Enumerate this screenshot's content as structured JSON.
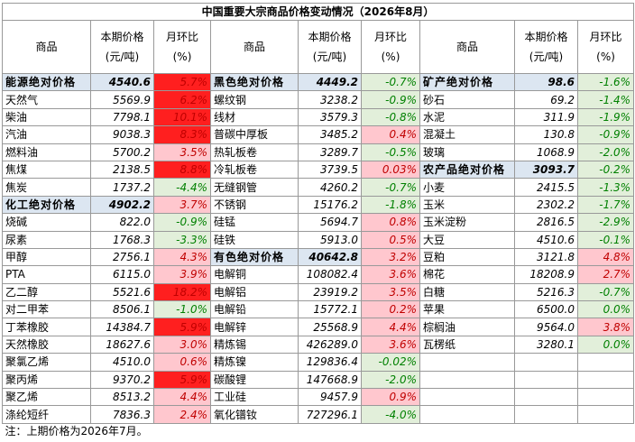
{
  "title": "中国重要大宗商品价格变动情况（2026年8月）",
  "header": [
    "商品",
    "本期价格\n(元/吨)",
    "月环比\n(%)"
  ],
  "panels": [
    {
      "sections": [
        {
          "name": "能源绝对价格",
          "price": "4540.6",
          "change": "5.7%",
          "items": [
            [
              "天然气",
              "5569.9",
              "6.2%"
            ],
            [
              "柴油",
              "7798.1",
              "10.1%"
            ],
            [
              "汽油",
              "9038.3",
              "8.3%"
            ],
            [
              "燃料油",
              "5700.2",
              "3.5%"
            ],
            [
              "焦煤",
              "2138.5",
              "8.8%"
            ],
            [
              "焦炭",
              "1737.2",
              "-4.4%"
            ]
          ]
        },
        {
          "name": "化工绝对价格",
          "price": "4902.2",
          "change": "3.7%",
          "items": [
            [
              "烧碱",
              "822.0",
              "-0.9%"
            ],
            [
              "尿素",
              "1768.3",
              "-3.3%"
            ],
            [
              "甲醇",
              "2756.1",
              "4.3%"
            ],
            [
              "PTA",
              "6115.0",
              "3.9%"
            ],
            [
              "乙二醇",
              "5521.6",
              "18.2%"
            ],
            [
              "对二甲苯",
              "8506.1",
              "-1.0%"
            ],
            [
              "丁苯橡胶",
              "14384.7",
              "5.9%"
            ],
            [
              "天然橡胶",
              "18627.6",
              "3.0%"
            ],
            [
              "聚氯乙烯",
              "4510.0",
              "0.6%"
            ],
            [
              "聚丙烯",
              "9370.2",
              "5.9%"
            ],
            [
              "聚乙烯",
              "8513.2",
              "4.4%"
            ],
            [
              "涤纶短纤",
              "7836.3",
              "2.4%"
            ]
          ]
        }
      ]
    },
    {
      "sections": [
        {
          "name": "黑色绝对价格",
          "price": "4449.2",
          "change": "-0.7%",
          "items": [
            [
              "螺纹钢",
              "3238.2",
              "-0.9%"
            ],
            [
              "线材",
              "3579.3",
              "-0.8%"
            ],
            [
              "普碳中厚板",
              "3485.2",
              "0.4%"
            ],
            [
              "热轧板卷",
              "3289.7",
              "-0.5%"
            ],
            [
              "冷轧板卷",
              "3739.5",
              "0.03%"
            ],
            [
              "无缝钢管",
              "4260.2",
              "-0.7%"
            ],
            [
              "不锈钢",
              "15176.2",
              "-1.8%"
            ],
            [
              "硅锰",
              "5694.7",
              "0.8%"
            ],
            [
              "硅铁",
              "5913.0",
              "0.5%"
            ]
          ]
        },
        {
          "name": "有色绝对价格",
          "price": "40642.8",
          "change": "3.2%",
          "items": [
            [
              "电解铜",
              "108082.4",
              "3.6%"
            ],
            [
              "电解铝",
              "23919.2",
              "3.5%"
            ],
            [
              "电解铅",
              "15772.1",
              "0.2%"
            ],
            [
              "电解锌",
              "25568.9",
              "4.4%"
            ],
            [
              "精炼锡",
              "426289.0",
              "3.6%"
            ],
            [
              "精炼镍",
              "129836.4",
              "-0.02%"
            ],
            [
              "碳酸锂",
              "147668.9",
              "-2.0%"
            ],
            [
              "工业硅",
              "9457.9",
              "0.9%"
            ],
            [
              "氧化镨钕",
              "727296.1",
              "-4.0%"
            ]
          ]
        }
      ]
    },
    {
      "sections": [
        {
          "name": "矿产绝对价格",
          "price": "98.6",
          "change": "-1.6%",
          "items": [
            [
              "砂石",
              "69.2",
              "-1.4%"
            ],
            [
              "水泥",
              "311.9",
              "-1.9%"
            ],
            [
              "混凝土",
              "130.8",
              "-0.9%"
            ],
            [
              "玻璃",
              "1068.9",
              "-2.0%"
            ]
          ]
        },
        {
          "name": "农产品绝对价格",
          "price": "3093.7",
          "change": "-0.2%",
          "items": [
            [
              "小麦",
              "2415.5",
              "-1.3%"
            ],
            [
              "玉米",
              "2302.2",
              "-1.7%"
            ],
            [
              "玉米淀粉",
              "2816.5",
              "-2.9%"
            ],
            [
              "大豆",
              "4510.6",
              "-0.1%"
            ],
            [
              "豆粕",
              "3121.8",
              "4.8%"
            ],
            [
              "棉花",
              "18208.9",
              "2.7%"
            ],
            [
              "白糖",
              "5216.3",
              "-0.7%"
            ],
            [
              "苹果",
              "6500.0",
              "0.0%"
            ],
            [
              "棕榈油",
              "9564.0",
              "3.8%"
            ],
            [
              "瓦楞纸",
              "3280.1",
              "0.0%"
            ]
          ]
        }
      ]
    }
  ],
  "note": "注：上期价格为2026年7月。"
}
